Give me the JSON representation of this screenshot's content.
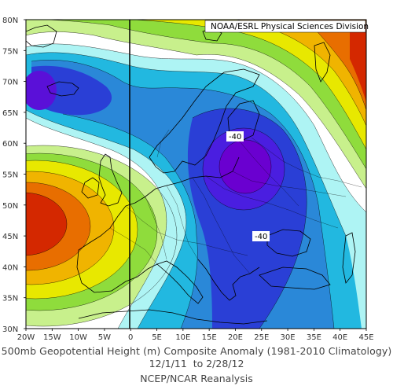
{
  "credit": "NOAA/ESRL Physical Sciences Division",
  "caption": {
    "line1": "500mb Geopotential Height (m) Composite Anomaly (1981-2010 Climatology)",
    "line2": "12/1/11  to 2/28/12",
    "line3": "NCEP/NCAR Reanalysis"
  },
  "axes": {
    "lat_labels": [
      "80N",
      "75N",
      "70N",
      "65N",
      "60N",
      "55N",
      "50N",
      "45N",
      "40N",
      "35N",
      "30N"
    ],
    "lon_labels": [
      "20W",
      "15W",
      "10W",
      "5W",
      "0",
      "5E",
      "10E",
      "15E",
      "20E",
      "25E",
      "30E",
      "35E",
      "40E",
      "45E"
    ]
  },
  "contour_labels": [
    "-40",
    "-40"
  ],
  "colors": {
    "deep_low": "#6a00d0",
    "low2": "#2a3fd6",
    "low3": "#2a88d8",
    "low4": "#22b8e0",
    "low5": "#aef4f4",
    "neutral": "#ffffff",
    "high1": "#c8f08c",
    "high2": "#8fdc3c",
    "high3": "#e8e800",
    "high4": "#f0b400",
    "high5": "#e86e00",
    "high6": "#d42800"
  }
}
